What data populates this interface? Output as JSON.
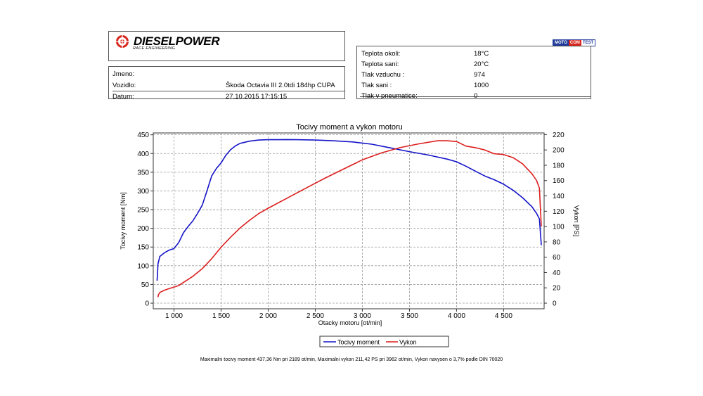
{
  "logo": {
    "name": "DIESELPOWER",
    "sub": "RACE ENGINEERING",
    "brand_color": "#d8261c"
  },
  "badge": {
    "parts": [
      "MOTO",
      "COM",
      "TEST"
    ],
    "color": "#1f3a9a",
    "accent": "#d8261c"
  },
  "vehicle": {
    "jmeno_label": "Jmeno:",
    "vozidlo_label": "Vozidlo:",
    "vozidlo_value": "Škoda Octavia III 2.0tdi 184hp CUPA",
    "datum_label": "Datum:",
    "datum_value": "27.10.2015 17:15:15"
  },
  "conditions": [
    {
      "label": "Teplota okoli:",
      "value": "18°C"
    },
    {
      "label": "Teplota sani:",
      "value": "20°C"
    },
    {
      "label": "Tlak vzduchu :",
      "value": "974"
    },
    {
      "label": "Tlak sani :",
      "value": "1000"
    },
    {
      "label": "Tlak v pneumatice:",
      "value": "0"
    }
  ],
  "footer": "Maximalni tocivy moment 437,36 Nm pri 2189 ot/min,  Maximalni vykon 211,42 PS pri 3962 ot/min,  Vykon navysen o 3,7% podle DIN 70020",
  "chart_data": {
    "type": "line",
    "title": "Tocivy moment a vykon motoru",
    "xlabel": "Otacky motoru [ot/min]",
    "ylabel": "Tocivy moment [Nm]",
    "y2label": "Vykon [PS]",
    "xlim": [
      780,
      4930
    ],
    "ylim": [
      -15,
      455
    ],
    "y2lim": [
      -7.33,
      222.2
    ],
    "x_ticks": [
      1000,
      1500,
      2000,
      2500,
      3000,
      3500,
      4000,
      4500
    ],
    "x_tick_labels": [
      "1 000",
      "1 500",
      "2 000",
      "2 500",
      "3 000",
      "3 500",
      "4 000",
      "4 500"
    ],
    "y_ticks": [
      0,
      50,
      100,
      150,
      200,
      250,
      300,
      350,
      400,
      450
    ],
    "y2_ticks": [
      0,
      20,
      40,
      60,
      80,
      100,
      120,
      140,
      160,
      180,
      200,
      220
    ],
    "grid": true,
    "legend_position": "bottom-center",
    "series": [
      {
        "name": "Tocivy moment",
        "axis": "left",
        "color": "#1414c8",
        "x": [
          820,
          825,
          830,
          850,
          900,
          950,
          1000,
          1050,
          1100,
          1150,
          1200,
          1250,
          1300,
          1350,
          1400,
          1450,
          1500,
          1550,
          1600,
          1650,
          1700,
          1750,
          1800,
          1900,
          2000,
          2100,
          2189,
          2300,
          2500,
          2700,
          2900,
          3000,
          3100,
          3300,
          3500,
          3700,
          3900,
          4000,
          4100,
          4200,
          4300,
          4400,
          4500,
          4600,
          4700,
          4800,
          4850,
          4880,
          4900
        ],
        "y": [
          60,
          75,
          105,
          125,
          135,
          142,
          146,
          162,
          188,
          205,
          220,
          240,
          262,
          300,
          340,
          360,
          375,
          395,
          410,
          420,
          427,
          430,
          433,
          436,
          437,
          437,
          437.4,
          437,
          436,
          434,
          431,
          428,
          425,
          415,
          405,
          396,
          385,
          378,
          366,
          353,
          340,
          330,
          318,
          302,
          282,
          258,
          240,
          225,
          155
        ]
      },
      {
        "name": "Vykon",
        "axis": "right",
        "color": "#dc1e1e",
        "x": [
          830,
          835,
          850,
          900,
          950,
          1000,
          1050,
          1100,
          1200,
          1300,
          1400,
          1500,
          1600,
          1700,
          1800,
          1900,
          2000,
          2200,
          2400,
          2600,
          2800,
          3000,
          3200,
          3400,
          3600,
          3800,
          3900,
          3962,
          4000,
          4100,
          4200,
          4300,
          4400,
          4500,
          4600,
          4700,
          4800,
          4850,
          4880,
          4900
        ],
        "y": [
          8,
          11,
          14,
          17,
          19,
          21,
          23,
          27,
          35,
          45,
          58,
          73,
          86,
          98,
          108,
          117,
          124,
          137,
          150,
          163,
          175,
          187,
          196,
          203,
          208,
          212,
          212,
          211.4,
          211,
          205,
          203,
          200,
          195,
          194,
          190,
          182,
          169,
          160,
          150,
          100
        ]
      }
    ]
  }
}
